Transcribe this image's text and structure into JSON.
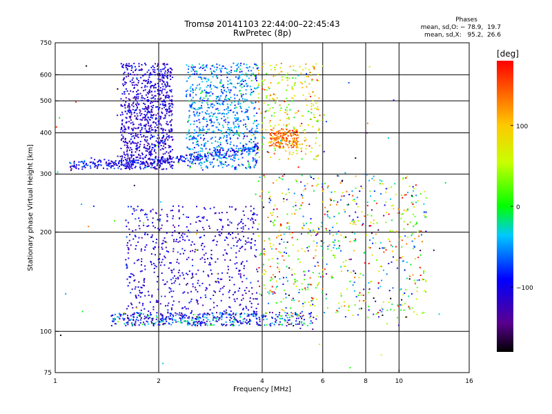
{
  "title_line1": "Tromsø 20141103 22:44:00–22:45:43",
  "title_line2": "RwPretec (8p)",
  "phases": {
    "label": "Phases",
    "line_o": "mean, sd,O: − 78.9,  19.7",
    "line_x": "mean, sd,X:   95.2,  26.6"
  },
  "colorbar": {
    "unit_label": "[deg]",
    "ticks": [
      {
        "value": 100,
        "label": "100"
      },
      {
        "value": 0,
        "label": "0"
      },
      {
        "value": -100,
        "label": "−100"
      }
    ],
    "min": -180,
    "max": 180
  },
  "chart_data": {
    "type": "scatter",
    "xlabel": "Frequency [MHz]",
    "ylabel": "Stationary phase Virtual Height [km]",
    "xscale": "log",
    "yscale": "log",
    "xlim": [
      1,
      16
    ],
    "ylim": [
      75,
      750
    ],
    "xticks": [
      1,
      2,
      4,
      6,
      8,
      10,
      16
    ],
    "yticks": [
      75,
      100,
      200,
      300,
      400,
      500,
      600,
      750
    ],
    "xgrid": [
      2,
      4,
      6,
      8,
      10
    ],
    "ygrid": [
      100,
      200,
      300,
      400,
      500,
      600
    ],
    "color_variable": "phase [deg]",
    "clusters": [
      {
        "id": "F-trace-low",
        "x_range": [
          1.1,
          3.9
        ],
        "height_formula": "rising",
        "h_start": 320,
        "h_end": 360,
        "phase_mean": -95,
        "phase_sd": 25,
        "density": 360
      },
      {
        "id": "F-columns-blue",
        "x_range": [
          1.55,
          2.2
        ],
        "h_range": [
          310,
          650
        ],
        "phase_mean": -110,
        "phase_sd": 18,
        "density": 900
      },
      {
        "id": "F-columns-cyan",
        "x_range": [
          2.4,
          3.9
        ],
        "h_range": [
          310,
          650
        ],
        "phase_mean": -55,
        "phase_sd": 25,
        "density": 800
      },
      {
        "id": "F-trace-high",
        "x_range": [
          3.9,
          5.9
        ],
        "h_range": [
          330,
          650
        ],
        "phase_mean": 70,
        "phase_sd": 45,
        "density": 260
      },
      {
        "id": "F-knee-orange",
        "x_range": [
          4.2,
          5.1
        ],
        "h_range": [
          360,
          410
        ],
        "phase_mean": 135,
        "phase_sd": 20,
        "density": 160
      },
      {
        "id": "E-trace-low",
        "x_range": [
          1.45,
          5.8
        ],
        "h_range": [
          104,
          114
        ],
        "phase_mean": -75,
        "phase_sd": 45,
        "density": 420
      },
      {
        "id": "E-columns-left",
        "x_range": [
          1.6,
          3.9
        ],
        "h_range": [
          104,
          240
        ],
        "phase_mean": -110,
        "phase_sd": 20,
        "density": 700
      },
      {
        "id": "E-columns-right",
        "x_range": [
          3.9,
          12.0
        ],
        "h_range": [
          110,
          300
        ],
        "phase_mean": 20,
        "phase_sd": 95,
        "density": 700
      },
      {
        "id": "scattered",
        "x_range": [
          1.0,
          15.0
        ],
        "h_range": [
          75,
          650
        ],
        "phase_mean": 0,
        "phase_sd": 110,
        "density": 90
      }
    ]
  }
}
